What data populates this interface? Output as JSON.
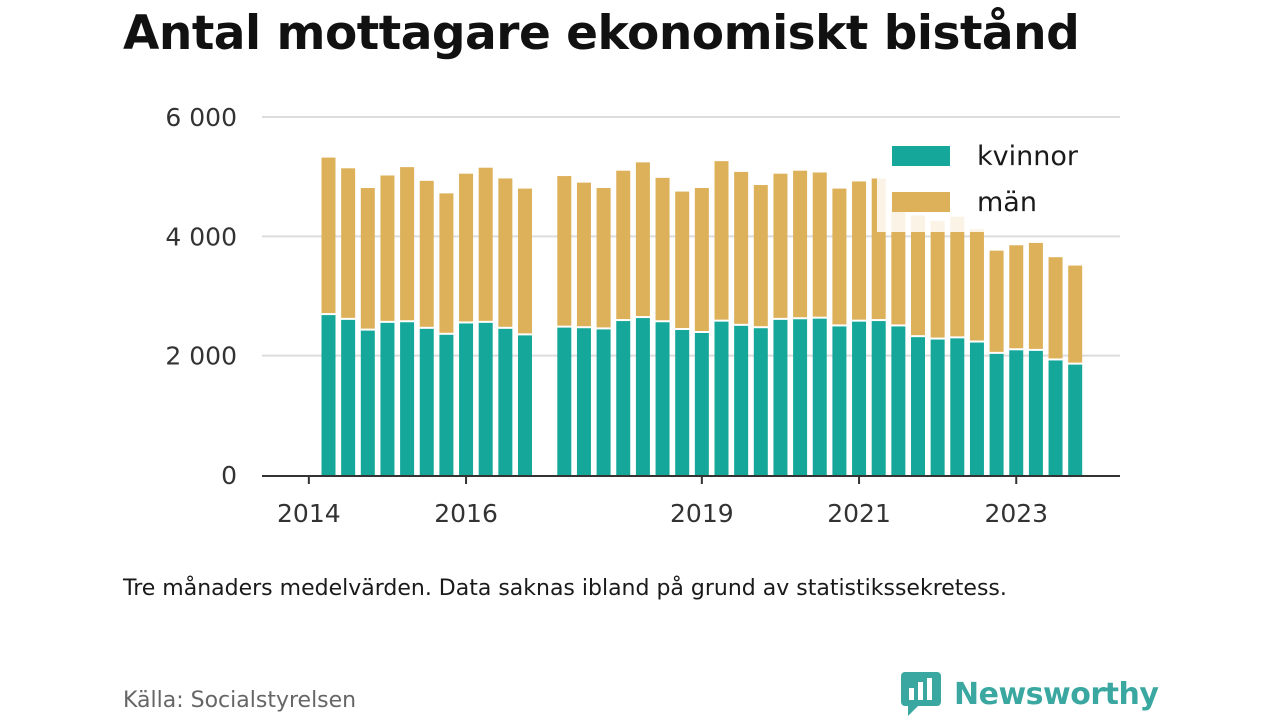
{
  "title": "Antal mottagare ekonomiskt bistånd",
  "note": "Tre månaders medelvärden. Data saknas ibland på grund av statistikssekretess.",
  "source": "Källa: Socialstyrelsen",
  "brand": {
    "name": "Newsworthy",
    "icon": "newsworthy-logo-icon"
  },
  "colors": {
    "kvinnor": "#15a89a",
    "man": "#ddb05a",
    "grid": "#dcdcdc",
    "axis": "#333333"
  },
  "chart_data": {
    "type": "bar",
    "stacked": true,
    "x_start": "2014-04",
    "x_step_months": 3,
    "ylim": [
      0,
      6000
    ],
    "yticks": [
      0,
      2000,
      4000,
      6000
    ],
    "ytick_labels": [
      "0",
      "2 000",
      "4 000",
      "6 000"
    ],
    "xtick_labels": [
      "2014",
      "2016",
      "2019",
      "2021",
      "2023"
    ],
    "xtick_years": [
      2014,
      2016,
      2019,
      2021,
      2023
    ],
    "grid": true,
    "legend_position": "top-right",
    "series": [
      {
        "name": "kvinnor",
        "values": [
          2680,
          2600,
          2420,
          2550,
          2560,
          2450,
          2350,
          2540,
          2550,
          2450,
          2340,
          null,
          2470,
          2460,
          2440,
          2580,
          2630,
          2560,
          2430,
          2380,
          2570,
          2500,
          2460,
          2600,
          2610,
          2620,
          2490,
          2570,
          2580,
          2490,
          2310,
          2270,
          2290,
          2220,
          2030,
          2090,
          2080,
          1920,
          1850
        ]
      },
      {
        "name": "män",
        "values": [
          2640,
          2540,
          2390,
          2470,
          2600,
          2480,
          2370,
          2510,
          2600,
          2520,
          2460,
          null,
          2540,
          2440,
          2370,
          2520,
          2610,
          2420,
          2320,
          2430,
          2690,
          2580,
          2400,
          2450,
          2490,
          2450,
          2310,
          2350,
          2390,
          1950,
          2040,
          1990,
          2040,
          1900,
          1730,
          1760,
          1810,
          1730,
          1660
        ]
      }
    ]
  }
}
